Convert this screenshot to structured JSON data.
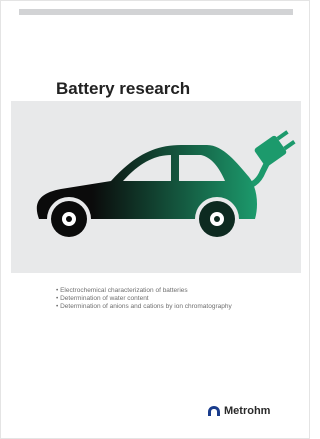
{
  "title": "Battery research",
  "bullets": [
    "Electrochemical characterization of batteries",
    "Determination of water content",
    "Determination of anions and cations by ion chromatography"
  ],
  "logo": "Metrohm"
}
